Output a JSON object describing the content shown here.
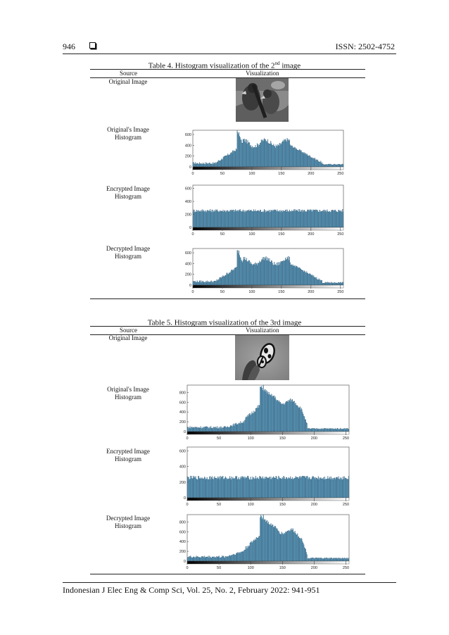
{
  "header": {
    "page_number": "946",
    "issn": "ISSN: 2502-4752"
  },
  "tables": [
    {
      "caption": {
        "before": "Table 4. Histogram visualization of the 2",
        "sup": "nd",
        "after": " image"
      },
      "col_source": "Source",
      "col_visual": "Visualization",
      "rows": [
        {
          "line1": "Original Image",
          "line2": ""
        },
        {
          "line1": "Original's Image",
          "line2": "Histogram"
        },
        {
          "line1": "Encrypted Image",
          "line2": "Histogram"
        },
        {
          "line1": "Decrypted Image",
          "line2": "Histogram"
        }
      ]
    },
    {
      "caption": {
        "before": "Table 5. Histogram visualization of the 3rd image",
        "sup": "",
        "after": ""
      },
      "col_source": "Source",
      "col_visual": "Visualization",
      "rows": [
        {
          "line1": "Original Image",
          "line2": ""
        },
        {
          "line1": "Original's Image",
          "line2": "Histogram"
        },
        {
          "line1": "Encrypted Image",
          "line2": "Histogram"
        },
        {
          "line1": "Decrypted Image",
          "line2": "Histogram"
        }
      ]
    }
  ],
  "chart_data": [
    {
      "type": "bar",
      "title": "",
      "xlabel": "",
      "ylabel": "",
      "xticks": [
        0,
        50,
        100,
        150,
        200,
        250
      ],
      "yticks": [
        0,
        200,
        400,
        600
      ],
      "xlim": [
        0,
        255
      ],
      "ylim": [
        0,
        680
      ],
      "profile": "parrot",
      "peak": 640,
      "bin_count": 256,
      "colorbar": "grayscale",
      "bar_color": "#5b9fc4"
    },
    {
      "type": "bar",
      "title": "",
      "xlabel": "",
      "ylabel": "",
      "xticks": [
        0,
        50,
        100,
        150,
        200,
        250
      ],
      "yticks": [
        0,
        200,
        400,
        600
      ],
      "xlim": [
        0,
        255
      ],
      "ylim": [
        0,
        650
      ],
      "profile": "flat",
      "level": 255,
      "bin_count": 256,
      "colorbar": "grayscale",
      "bar_color": "#5b9fc4"
    },
    {
      "type": "bar",
      "title": "",
      "xlabel": "",
      "ylabel": "",
      "xticks": [
        0,
        50,
        100,
        150,
        200,
        250
      ],
      "yticks": [
        0,
        200,
        400,
        600
      ],
      "xlim": [
        0,
        255
      ],
      "ylim": [
        0,
        680
      ],
      "profile": "parrot",
      "peak": 640,
      "bin_count": 256,
      "colorbar": "grayscale",
      "bar_color": "#5b9fc4"
    },
    {
      "type": "bar",
      "title": "",
      "xlabel": "",
      "ylabel": "",
      "xticks": [
        0,
        50,
        100,
        150,
        200,
        250
      ],
      "yticks": [
        0,
        200,
        400,
        600,
        800
      ],
      "xlim": [
        0,
        255
      ],
      "ylim": [
        0,
        950
      ],
      "profile": "butterfly",
      "peak": 950,
      "bin_count": 256,
      "colorbar": "grayscale",
      "bar_color": "#5b9fc4"
    },
    {
      "type": "bar",
      "title": "",
      "xlabel": "",
      "ylabel": "",
      "xticks": [
        0,
        50,
        100,
        150,
        200,
        250
      ],
      "yticks": [
        0,
        200,
        400,
        600
      ],
      "xlim": [
        0,
        255
      ],
      "ylim": [
        0,
        650
      ],
      "profile": "flat",
      "level": 255,
      "bin_count": 256,
      "colorbar": "grayscale",
      "bar_color": "#5b9fc4"
    },
    {
      "type": "bar",
      "title": "",
      "xlabel": "",
      "ylabel": "",
      "xticks": [
        0,
        50,
        100,
        150,
        200,
        250
      ],
      "yticks": [
        0,
        200,
        400,
        600,
        800
      ],
      "xlim": [
        0,
        255
      ],
      "ylim": [
        0,
        950
      ],
      "profile": "butterfly",
      "peak": 950,
      "bin_count": 256,
      "colorbar": "grayscale",
      "bar_color": "#5b9fc4"
    }
  ],
  "footer": "Indonesian J Elec Eng & Comp Sci, Vol. 25, No. 2, February 2022: 941-951"
}
